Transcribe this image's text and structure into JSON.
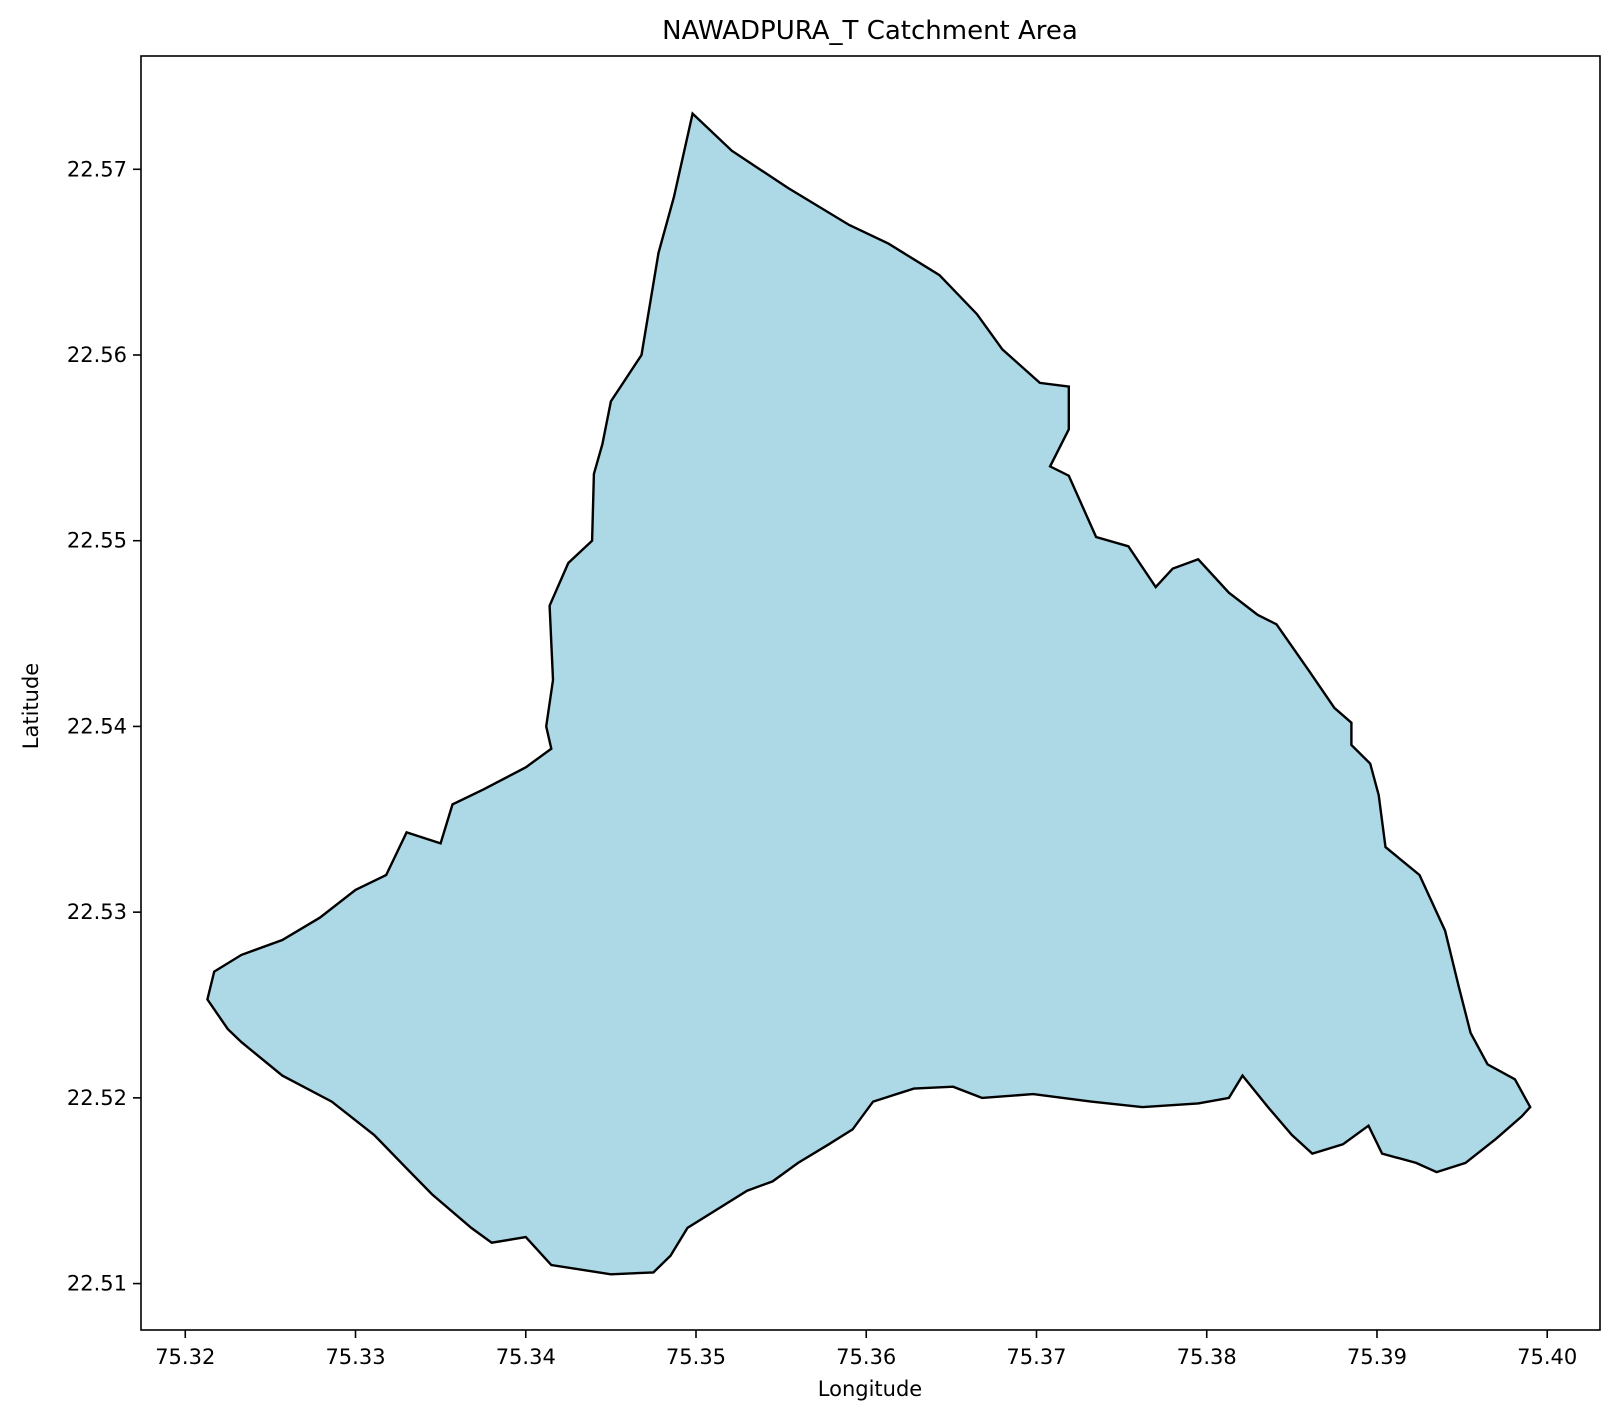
{
  "chart_data": {
    "type": "area",
    "title": "NAWADPURA_T Catchment Area",
    "xlabel": "Longitude",
    "ylabel": "Latitude",
    "xlim": [
      75.3174,
      75.4031
    ],
    "ylim": [
      22.5075,
      22.5761
    ],
    "x_ticks": [
      "75.32",
      "75.33",
      "75.34",
      "75.35",
      "75.36",
      "75.37",
      "75.38",
      "75.39",
      "75.40"
    ],
    "y_ticks": [
      "22.51",
      "22.52",
      "22.53",
      "22.54",
      "22.55",
      "22.56",
      "22.57"
    ],
    "grid": false,
    "legend": "none",
    "series": [
      {
        "fill_color": "#add8e6",
        "edge_color": "#000000",
        "x": [
          75.3498,
          75.3521,
          75.3554,
          75.359,
          75.3613,
          75.3643,
          75.3665,
          75.368,
          75.3702,
          75.3719,
          75.3719,
          75.3708,
          75.3719,
          75.3735,
          75.3754,
          75.377,
          75.378,
          75.3795,
          75.3813,
          75.383,
          75.3841,
          75.386,
          75.3875,
          75.3885,
          75.3885,
          75.3896,
          75.3901,
          75.3905,
          75.3925,
          75.394,
          75.3948,
          75.3955,
          75.3965,
          75.3981,
          75.399,
          75.3985,
          75.397,
          75.3952,
          75.3935,
          75.3923,
          75.3903,
          75.3895,
          75.388,
          75.3862,
          75.385,
          75.3836,
          75.3821,
          75.3813,
          75.3795,
          75.3762,
          75.3732,
          75.3698,
          75.3668,
          75.3651,
          75.3628,
          75.3604,
          75.3592,
          75.3578,
          75.356,
          75.3545,
          75.353,
          75.3495,
          75.3485,
          75.3475,
          75.345,
          75.3415,
          75.34,
          75.338,
          75.3368,
          75.3345,
          75.3329,
          75.3311,
          75.3286,
          75.3257,
          75.3233,
          75.3225,
          75.3213,
          75.3217,
          75.3233,
          75.3257,
          75.3279,
          75.33,
          75.3318,
          75.333,
          75.335,
          75.3357,
          75.3375,
          75.34,
          75.3415,
          75.3412,
          75.3416,
          75.3414,
          75.3425,
          75.3439,
          75.344,
          75.3445,
          75.345,
          75.3468,
          75.3478,
          75.3487
        ],
        "y": [
          22.573,
          22.571,
          22.569,
          22.567,
          22.566,
          22.5643,
          22.5622,
          22.5603,
          22.5585,
          22.5583,
          22.556,
          22.554,
          22.5535,
          22.5502,
          22.5497,
          22.5475,
          22.5485,
          22.549,
          22.5472,
          22.546,
          22.5455,
          22.543,
          22.541,
          22.5402,
          22.539,
          22.538,
          22.5363,
          22.5335,
          22.532,
          22.529,
          22.526,
          22.5235,
          22.5218,
          22.521,
          22.5195,
          22.519,
          22.5178,
          22.5165,
          22.516,
          22.5165,
          22.517,
          22.5185,
          22.5175,
          22.517,
          22.518,
          22.5195,
          22.5212,
          22.52,
          22.5197,
          22.5195,
          22.5198,
          22.5202,
          22.52,
          22.5206,
          22.5205,
          22.5198,
          22.5183,
          22.5175,
          22.5165,
          22.5155,
          22.515,
          22.513,
          22.5115,
          22.5106,
          22.5105,
          22.511,
          22.5125,
          22.5122,
          22.513,
          22.5148,
          22.5163,
          22.518,
          22.5198,
          22.5212,
          22.523,
          22.5237,
          22.5253,
          22.5268,
          22.5277,
          22.5285,
          22.5297,
          22.5312,
          22.532,
          22.5343,
          22.5337,
          22.5358,
          22.5366,
          22.5378,
          22.5388,
          22.54,
          22.5425,
          22.5465,
          22.5488,
          22.55,
          22.5536,
          22.5552,
          22.5575,
          22.56,
          22.5655,
          22.5685
        ]
      }
    ]
  }
}
